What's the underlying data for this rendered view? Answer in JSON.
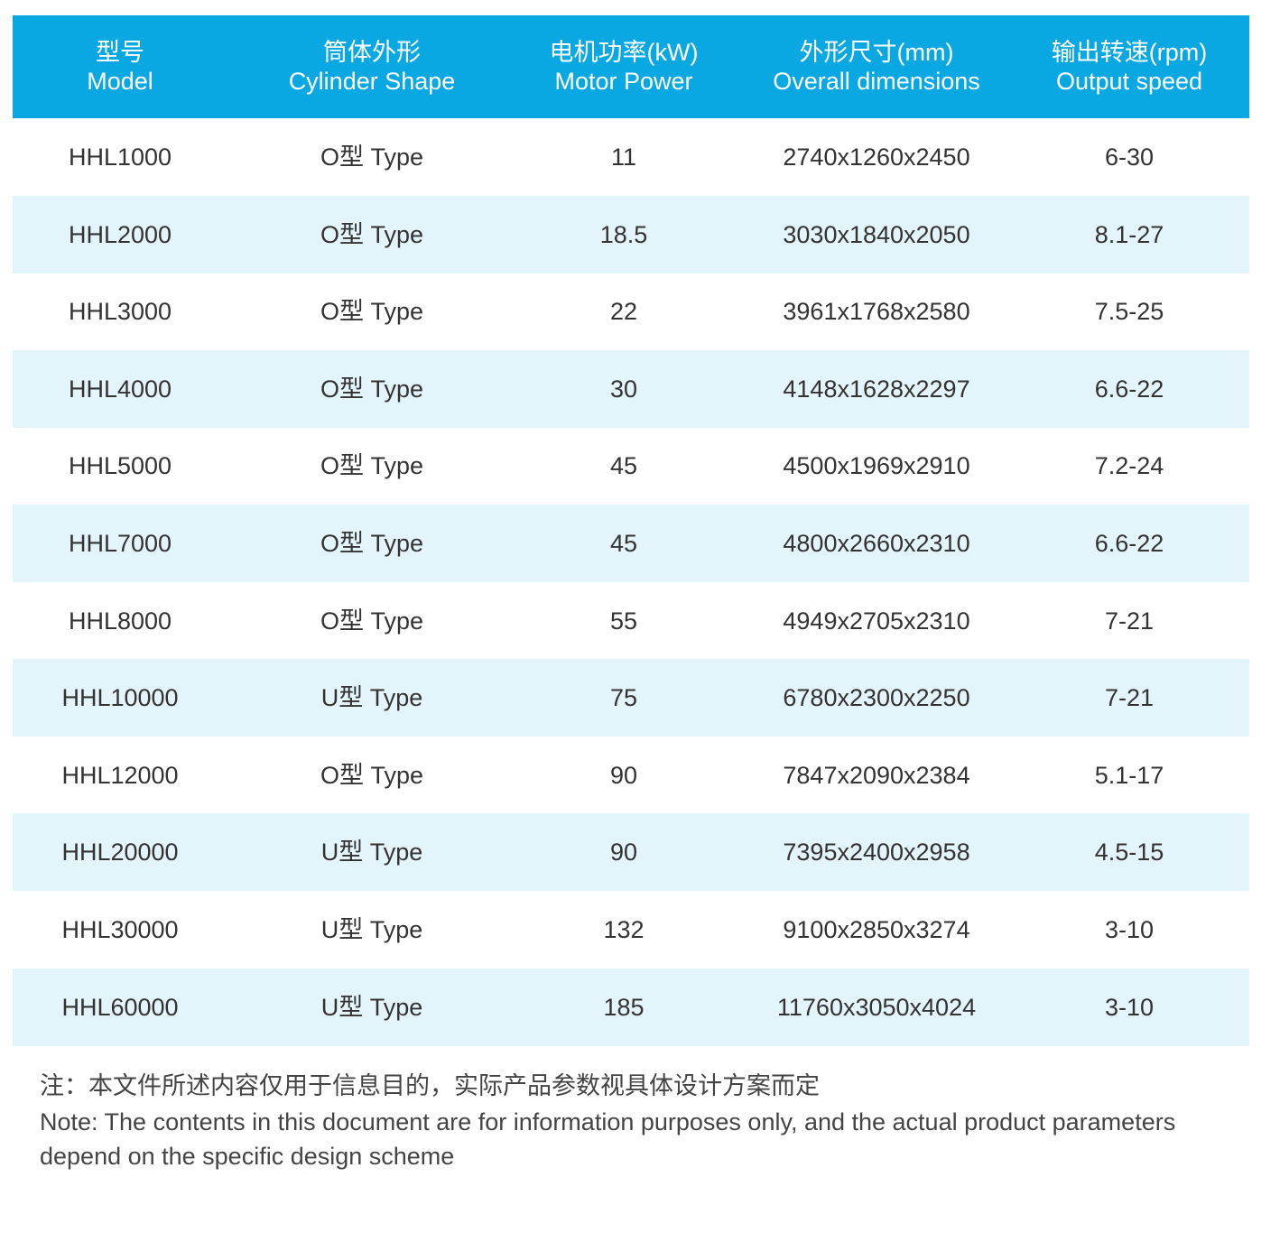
{
  "table": {
    "columns": [
      {
        "zh": "型号",
        "en": "Model"
      },
      {
        "zh": "筒体外形",
        "en": "Cylinder Shape"
      },
      {
        "zh": "电机功率(kW)",
        "en": "Motor Power"
      },
      {
        "zh": "外形尺寸(mm)",
        "en": "Overall dimensions"
      },
      {
        "zh": "输出转速(rpm)",
        "en": "Output speed"
      }
    ],
    "rows": [
      [
        "HHL1000",
        "O型 Type",
        11,
        "2740x1260x2450",
        "6-30"
      ],
      [
        "HHL2000",
        "O型 Type",
        18.5,
        "3030x1840x2050",
        "8.1-27"
      ],
      [
        "HHL3000",
        "O型 Type",
        22,
        "3961x1768x2580",
        "7.5-25"
      ],
      [
        "HHL4000",
        "O型 Type",
        30,
        "4148x1628x2297",
        "6.6-22"
      ],
      [
        "HHL5000",
        "O型 Type",
        45,
        "4500x1969x2910",
        "7.2-24"
      ],
      [
        "HHL7000",
        "O型 Type",
        45,
        "4800x2660x2310",
        "6.6-22"
      ],
      [
        "HHL8000",
        "O型 Type",
        55,
        "4949x2705x2310",
        "7-21"
      ],
      [
        "HHL10000",
        "U型 Type",
        75,
        "6780x2300x2250",
        "7-21"
      ],
      [
        "HHL12000",
        "O型 Type",
        90,
        "7847x2090x2384",
        "5.1-17"
      ],
      [
        "HHL20000",
        "U型 Type",
        90,
        "7395x2400x2958",
        "4.5-15"
      ],
      [
        "HHL30000",
        "U型 Type",
        132,
        "9100x2850x3274",
        "3-10"
      ],
      [
        "HHL60000",
        "U型 Type",
        185,
        "11760x3050x4024",
        "3-10"
      ]
    ]
  },
  "note": {
    "zh": "注：本文件所述内容仅用于信息目的，实际产品参数视具体设计方案而定",
    "en": "Note: The contents in this document are for information purposes only, and the actual product parameters depend on the specific design scheme"
  }
}
